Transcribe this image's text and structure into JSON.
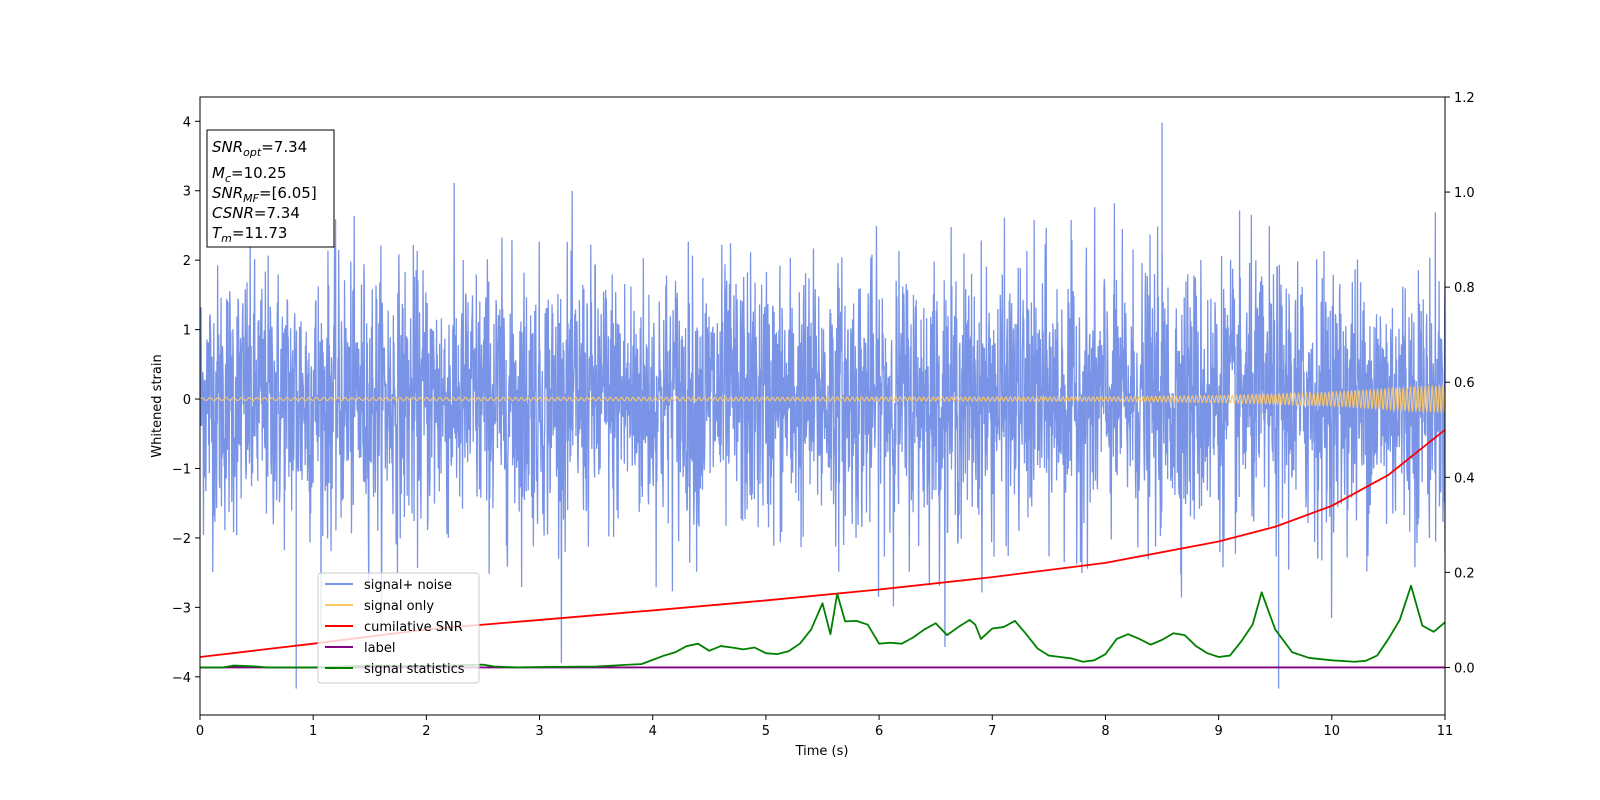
{
  "chart_data": {
    "type": "line",
    "xlabel": "Time (s)",
    "ylabel": "Whitened strain",
    "xlim": [
      0,
      11
    ],
    "ylim": [
      -4.55,
      4.35
    ],
    "y2lim": [
      -0.1,
      1.2
    ],
    "x_ticks": [
      0,
      1,
      2,
      3,
      4,
      5,
      6,
      7,
      8,
      9,
      10,
      11
    ],
    "y_ticks": [
      -4,
      -3,
      -2,
      -1,
      0,
      1,
      2,
      3,
      4
    ],
    "y2_ticks": [
      "0.0",
      "0.2",
      "0.4",
      "0.6",
      "0.8",
      "1.0",
      "1.2"
    ],
    "y2_tick_values": [
      0.0,
      0.2,
      0.4,
      0.6,
      0.8,
      1.0,
      1.2
    ],
    "grid": false,
    "legend_position": "lower-left",
    "series": [
      {
        "name": "signal+ noise",
        "axis": "left",
        "color": "#7994e6",
        "description_values": {
          "typical_range": [
            -2.0,
            2.0
          ],
          "max": 3.98,
          "min": -4.17
        },
        "peaks": [
          [
            0.85,
            -4.17
          ],
          [
            8.5,
            3.98
          ],
          [
            9.53,
            -4.17
          ],
          [
            11.0,
            -2.2
          ]
        ]
      },
      {
        "name": "signal only",
        "axis": "left",
        "color": "#ffc966",
        "envelope": [
          [
            0,
            0.02
          ],
          [
            8,
            0.03
          ],
          [
            9,
            0.05
          ],
          [
            10,
            0.1
          ],
          [
            11,
            0.2
          ]
        ]
      },
      {
        "name": "cumilative SNR",
        "axis": "right",
        "color": "#ff0000",
        "x": [
          0,
          1,
          2,
          3,
          4,
          5,
          6,
          7,
          8,
          9,
          9.5,
          10,
          10.5,
          11
        ],
        "values": [
          0.022,
          0.05,
          0.08,
          0.1,
          0.12,
          0.141,
          0.164,
          0.19,
          0.22,
          0.265,
          0.296,
          0.34,
          0.405,
          0.5
        ]
      },
      {
        "name": "label",
        "axis": "right",
        "color": "#800080",
        "x": [
          0,
          11
        ],
        "values": [
          0,
          0
        ]
      },
      {
        "name": "signal statistics",
        "axis": "right",
        "color": "#008000",
        "x": [
          0,
          0.2,
          0.3,
          0.5,
          0.6,
          1,
          1.5,
          2,
          2.5,
          2.6,
          2.8,
          3,
          3.5,
          3.8,
          3.9,
          4.0,
          4.1,
          4.2,
          4.3,
          4.4,
          4.5,
          4.6,
          4.7,
          4.8,
          4.9,
          5.0,
          5.1,
          5.2,
          5.3,
          5.4,
          5.5,
          5.57,
          5.63,
          5.7,
          5.8,
          5.9,
          6.0,
          6.1,
          6.2,
          6.3,
          6.4,
          6.5,
          6.6,
          6.7,
          6.8,
          6.85,
          6.9,
          7.0,
          7.1,
          7.2,
          7.3,
          7.4,
          7.5,
          7.6,
          7.7,
          7.8,
          7.9,
          8.0,
          8.1,
          8.2,
          8.3,
          8.4,
          8.5,
          8.6,
          8.7,
          8.8,
          8.9,
          9.0,
          9.1,
          9.2,
          9.3,
          9.38,
          9.5,
          9.65,
          9.8,
          10.0,
          10.2,
          10.3,
          10.4,
          10.5,
          10.6,
          10.7,
          10.8,
          10.9,
          11.0
        ],
        "values": [
          0,
          0.0,
          0.004,
          0.002,
          0,
          0,
          0.004,
          0.003,
          0.006,
          0.002,
          0,
          0.001,
          0.002,
          0.006,
          0.007,
          0.016,
          0.025,
          0.032,
          0.045,
          0.05,
          0.035,
          0.045,
          0.042,
          0.038,
          0.042,
          0.03,
          0.028,
          0.034,
          0.05,
          0.08,
          0.135,
          0.07,
          0.155,
          0.097,
          0.098,
          0.09,
          0.05,
          0.052,
          0.05,
          0.063,
          0.08,
          0.093,
          0.068,
          0.085,
          0.1,
          0.09,
          0.06,
          0.082,
          0.085,
          0.098,
          0.07,
          0.04,
          0.025,
          0.022,
          0.019,
          0.012,
          0.015,
          0.028,
          0.06,
          0.07,
          0.06,
          0.048,
          0.058,
          0.072,
          0.068,
          0.045,
          0.03,
          0.022,
          0.025,
          0.055,
          0.09,
          0.158,
          0.08,
          0.032,
          0.02,
          0.015,
          0.012,
          0.014,
          0.025,
          0.06,
          0.1,
          0.172,
          0.088,
          0.075,
          0.095
        ]
      }
    ]
  },
  "stats_box": {
    "snr_opt": {
      "base": "SNR",
      "sub": "opt",
      "value": "=7.34"
    },
    "mc": {
      "base": "M",
      "sub": "c",
      "value": "=10.25"
    },
    "snr_mf": {
      "base": "SNR",
      "sub": "MF",
      "value": "=[6.05]"
    },
    "csnr": {
      "base": "CSNR",
      "value": "=7.34"
    },
    "tm": {
      "base": "T",
      "sub": "m",
      "value": "=11.73"
    }
  },
  "colors": {
    "noise": "#7994e6",
    "signal": "#ffc966",
    "cumulative_snr": "#ff0000",
    "label": "#800080",
    "statistics": "#008000"
  }
}
